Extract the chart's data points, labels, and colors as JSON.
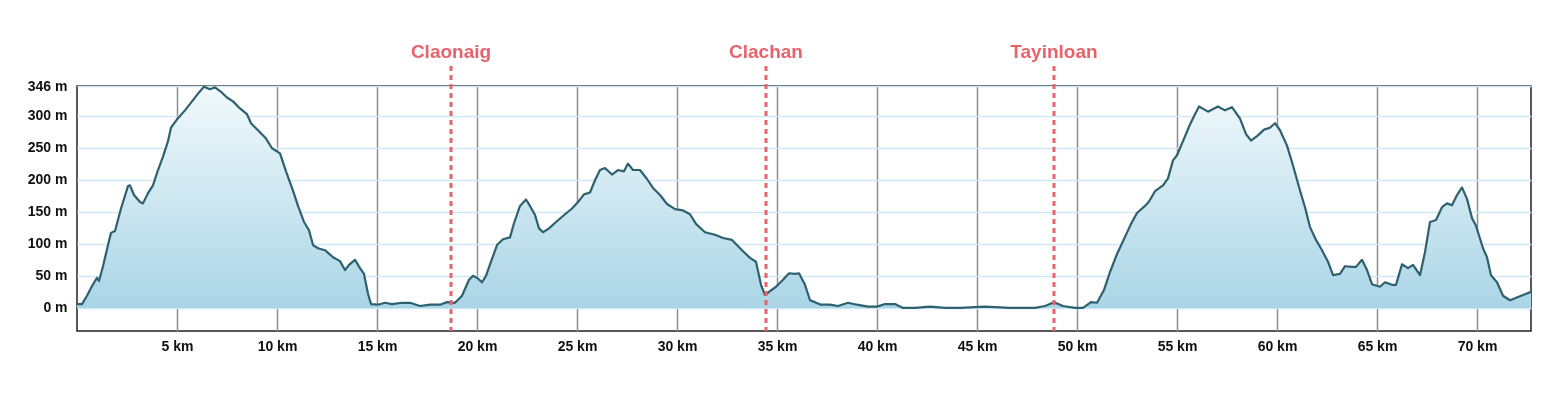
{
  "chart_data": {
    "type": "area",
    "xlim": [
      0,
      72.7
    ],
    "ylim": [
      -36,
      346
    ],
    "xticks": [
      {
        "value": 5,
        "label": "5 km"
      },
      {
        "value": 10,
        "label": "10 km"
      },
      {
        "value": 15,
        "label": "15 km"
      },
      {
        "value": 20,
        "label": "20 km"
      },
      {
        "value": 25,
        "label": "25 km"
      },
      {
        "value": 30,
        "label": "30 km"
      },
      {
        "value": 35,
        "label": "35 km"
      },
      {
        "value": 40,
        "label": "40 km"
      },
      {
        "value": 45,
        "label": "45 km"
      },
      {
        "value": 50,
        "label": "50 km"
      },
      {
        "value": 55,
        "label": "55 km"
      },
      {
        "value": 60,
        "label": "60 km"
      },
      {
        "value": 65,
        "label": "65 km"
      },
      {
        "value": 70,
        "label": "70 km"
      }
    ],
    "yticks": [
      {
        "value": 0,
        "label": "0 m"
      },
      {
        "value": 50,
        "label": "50 m"
      },
      {
        "value": 100,
        "label": "100 m"
      },
      {
        "value": 150,
        "label": "150 m"
      },
      {
        "value": 200,
        "label": "200 m"
      },
      {
        "value": 250,
        "label": "250 m"
      },
      {
        "value": 300,
        "label": "300 m"
      },
      {
        "value": 346,
        "label": "346 m"
      }
    ],
    "grid": true,
    "ref_lines": [
      {
        "axis": "x",
        "value": 18.7,
        "label": "Claonaig",
        "color": "#e8636b",
        "line_style": "dashed"
      },
      {
        "axis": "x",
        "value": 34.45,
        "label": "Clachan",
        "color": "#e8636b",
        "line_style": "dashed"
      },
      {
        "axis": "x",
        "value": 48.85,
        "label": "Tayinloan",
        "color": "#e8636b",
        "line_style": "dashed"
      }
    ],
    "series": [
      {
        "color": "#2e6170",
        "x": [
          0,
          0.25,
          0.5,
          0.75,
          1.0,
          1.1,
          1.3,
          1.55,
          1.7,
          1.9,
          2.2,
          2.55,
          2.65,
          2.85,
          3.15,
          3.3,
          3.55,
          3.8,
          4.05,
          4.3,
          4.55,
          4.7,
          5.0,
          5.4,
          5.75,
          6.1,
          6.35,
          6.65,
          6.9,
          7.2,
          7.5,
          7.8,
          8.15,
          8.5,
          8.7,
          8.95,
          9.45,
          9.75,
          10.15,
          10.45,
          10.8,
          11.05,
          11.35,
          11.6,
          11.8,
          12.05,
          12.4,
          12.8,
          13.15,
          13.4,
          13.6,
          13.9,
          14.15,
          14.35,
          14.55,
          14.7,
          15.05,
          15.4,
          15.75,
          16.25,
          16.65,
          17.15,
          17.65,
          18.15,
          18.5,
          18.9,
          19.25,
          19.6,
          19.8,
          20.0,
          20.25,
          20.45,
          20.7,
          21.0,
          21.3,
          21.65,
          21.85,
          22.15,
          22.45,
          22.65,
          22.9,
          23.1,
          23.3,
          23.6,
          23.95,
          24.4,
          24.75,
          25.05,
          25.35,
          25.65,
          25.9,
          26.15,
          26.4,
          26.75,
          27.05,
          27.35,
          27.55,
          27.8,
          28.15,
          28.5,
          28.8,
          29.15,
          29.5,
          29.9,
          30.3,
          30.65,
          30.95,
          31.4,
          31.9,
          32.3,
          32.75,
          33.25,
          33.65,
          33.95,
          34.2,
          34.4,
          34.65,
          34.95,
          35.3,
          35.6,
          35.9,
          36.1,
          36.4,
          36.65,
          36.9,
          37.2,
          37.65,
          38.05,
          38.55,
          39.0,
          39.55,
          40.0,
          40.4,
          40.9,
          41.3,
          41.9,
          42.65,
          43.4,
          44.15,
          45.4,
          46.65,
          47.9,
          48.4,
          48.85,
          49.3,
          49.9,
          50.3,
          50.7,
          51.0,
          51.35,
          51.65,
          52.0,
          52.3,
          52.7,
          53.0,
          53.4,
          53.6,
          53.9,
          54.3,
          54.55,
          54.8,
          55.0,
          55.3,
          55.65,
          55.9,
          56.1,
          56.55,
          57.05,
          57.4,
          57.75,
          58.15,
          58.45,
          58.7,
          59.05,
          59.35,
          59.65,
          59.9,
          60.15,
          60.5,
          60.8,
          61.15,
          61.4,
          61.65,
          61.95,
          62.25,
          62.55,
          62.8,
          63.15,
          63.4,
          63.75,
          63.95,
          64.25,
          64.5,
          64.75,
          65.15,
          65.4,
          65.75,
          65.95,
          66.25,
          66.55,
          66.8,
          67.15,
          67.4,
          67.65,
          67.95,
          68.25,
          68.5,
          68.75,
          69.0,
          69.25,
          69.5,
          69.75,
          69.95,
          70.3,
          70.5,
          70.7,
          71.0,
          71.3,
          71.65,
          72.05,
          72.7
        ],
        "values": [
          6,
          6,
          19,
          34,
          47,
          42,
          65,
          98,
          117,
          120,
          155,
          190,
          191,
          176,
          165,
          163,
          179,
          191,
          215,
          236,
          260,
          281,
          294,
          308,
          322,
          336,
          345,
          341,
          344,
          337,
          328,
          322,
          311,
          302,
          288,
          280,
          264,
          249,
          241,
          213,
          183,
          159,
          134,
          121,
          98,
          93,
          90,
          79,
          73,
          59,
          67,
          75,
          62,
          53,
          22,
          6,
          5,
          8,
          6,
          8,
          8,
          3,
          5,
          5,
          9,
          8,
          19,
          44,
          50,
          47,
          40,
          50,
          72,
          98,
          107,
          110,
          132,
          159,
          169,
          159,
          145,
          124,
          118,
          124,
          134,
          146,
          155,
          165,
          177,
          180,
          199,
          215,
          218,
          208,
          215,
          213,
          225,
          215,
          215,
          201,
          187,
          176,
          162,
          154,
          152,
          146,
          131,
          118,
          114,
          109,
          106,
          90,
          78,
          72,
          36,
          20,
          26,
          33,
          44,
          54,
          53,
          54,
          36,
          12,
          9,
          5,
          5,
          3,
          8,
          5,
          2,
          2,
          6,
          6,
          0,
          0,
          2,
          0,
          0,
          2,
          0,
          0,
          3,
          9,
          3,
          0,
          0,
          9,
          8,
          28,
          56,
          84,
          104,
          131,
          148,
          159,
          166,
          182,
          191,
          202,
          230,
          238,
          260,
          286,
          302,
          314,
          306,
          314,
          308,
          313,
          295,
          271,
          261,
          269,
          278,
          281,
          288,
          277,
          253,
          222,
          183,
          157,
          126,
          106,
          90,
          72,
          51,
          53,
          65,
          64,
          64,
          75,
          59,
          37,
          33,
          40,
          36,
          36,
          68,
          62,
          67,
          51,
          87,
          134,
          137,
          157,
          163,
          160,
          176,
          188,
          170,
          140,
          128,
          93,
          79,
          51,
          40,
          19,
          12,
          17,
          25
        ]
      }
    ]
  }
}
